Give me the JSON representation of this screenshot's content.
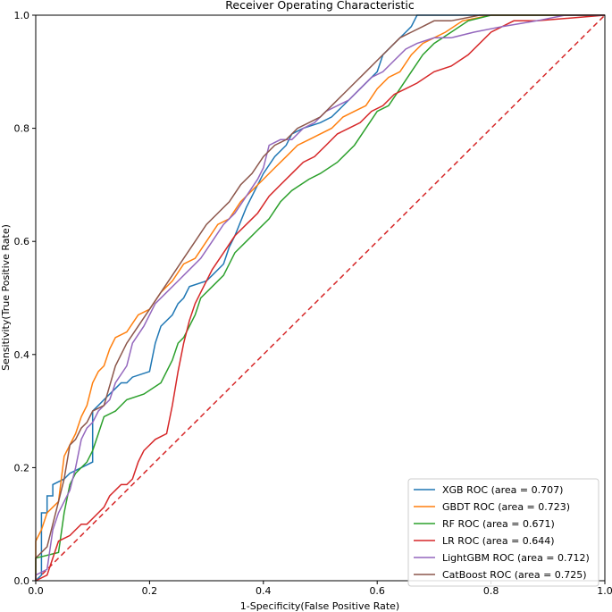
{
  "chart_data": {
    "type": "line",
    "title": "Receiver Operating Characteristic",
    "xlabel": "1-Specificity(False Positive Rate)",
    "ylabel": "Sensitivity(True Positive Rate)",
    "xlim": [
      0.0,
      1.0
    ],
    "ylim": [
      0.0,
      1.0
    ],
    "xticks": [
      "0.0",
      "0.2",
      "0.4",
      "0.6",
      "0.8",
      "1.0"
    ],
    "yticks": [
      "0.0",
      "0.2",
      "0.4",
      "0.6",
      "0.8",
      "1.0"
    ],
    "grid": false,
    "legend_position": "lower-right",
    "reference_line": {
      "style": "dashed",
      "color": "#d62728",
      "x": [
        0,
        1
      ],
      "y": [
        0,
        1
      ]
    },
    "series": [
      {
        "name": "XGB ROC (area = 0.707)",
        "color": "#1f77b4",
        "x": [
          0.0,
          0.01,
          0.01,
          0.02,
          0.02,
          0.03,
          0.03,
          0.05,
          0.06,
          0.08,
          0.1,
          0.1,
          0.11,
          0.12,
          0.14,
          0.15,
          0.16,
          0.17,
          0.2,
          0.21,
          0.22,
          0.24,
          0.25,
          0.26,
          0.27,
          0.3,
          0.31,
          0.33,
          0.34,
          0.35,
          0.37,
          0.39,
          0.4,
          0.42,
          0.44,
          0.45,
          0.47,
          0.5,
          0.52,
          0.55,
          0.57,
          0.6,
          0.61,
          0.63,
          0.65,
          0.66,
          0.67,
          0.75,
          0.83,
          0.9,
          1.0
        ],
        "y": [
          0.0,
          0.01,
          0.12,
          0.12,
          0.15,
          0.15,
          0.17,
          0.18,
          0.19,
          0.2,
          0.21,
          0.3,
          0.31,
          0.32,
          0.34,
          0.35,
          0.35,
          0.36,
          0.37,
          0.42,
          0.45,
          0.47,
          0.49,
          0.5,
          0.52,
          0.53,
          0.54,
          0.56,
          0.59,
          0.61,
          0.66,
          0.7,
          0.72,
          0.75,
          0.77,
          0.79,
          0.8,
          0.81,
          0.82,
          0.85,
          0.87,
          0.9,
          0.93,
          0.95,
          0.97,
          0.98,
          1.0,
          1.0,
          1.0,
          1.0,
          1.0
        ]
      },
      {
        "name": "GBDT ROC (area = 0.723)",
        "color": "#ff7f0e",
        "x": [
          0.0,
          0.0,
          0.01,
          0.02,
          0.03,
          0.04,
          0.05,
          0.07,
          0.08,
          0.09,
          0.1,
          0.11,
          0.12,
          0.13,
          0.14,
          0.16,
          0.18,
          0.2,
          0.22,
          0.24,
          0.26,
          0.28,
          0.3,
          0.32,
          0.34,
          0.36,
          0.38,
          0.4,
          0.42,
          0.44,
          0.46,
          0.48,
          0.5,
          0.52,
          0.54,
          0.56,
          0.58,
          0.6,
          0.62,
          0.64,
          0.66,
          0.68,
          0.7,
          0.72,
          0.75,
          0.8,
          0.9,
          1.0
        ],
        "y": [
          0.0,
          0.07,
          0.09,
          0.12,
          0.13,
          0.14,
          0.22,
          0.26,
          0.29,
          0.31,
          0.35,
          0.37,
          0.38,
          0.41,
          0.43,
          0.44,
          0.47,
          0.48,
          0.51,
          0.53,
          0.56,
          0.57,
          0.6,
          0.63,
          0.64,
          0.67,
          0.69,
          0.71,
          0.73,
          0.75,
          0.77,
          0.78,
          0.79,
          0.8,
          0.82,
          0.83,
          0.84,
          0.87,
          0.89,
          0.9,
          0.93,
          0.95,
          0.96,
          0.97,
          0.99,
          1.0,
          1.0,
          1.0
        ]
      },
      {
        "name": "RF ROC (area = 0.671)",
        "color": "#2ca02c",
        "x": [
          0.0,
          0.0,
          0.04,
          0.05,
          0.06,
          0.07,
          0.08,
          0.09,
          0.1,
          0.11,
          0.12,
          0.14,
          0.16,
          0.19,
          0.22,
          0.24,
          0.25,
          0.26,
          0.28,
          0.29,
          0.31,
          0.33,
          0.35,
          0.37,
          0.39,
          0.41,
          0.43,
          0.45,
          0.48,
          0.5,
          0.53,
          0.56,
          0.58,
          0.6,
          0.62,
          0.64,
          0.66,
          0.68,
          0.7,
          0.73,
          0.76,
          0.8,
          1.0
        ],
        "y": [
          0.0,
          0.04,
          0.05,
          0.12,
          0.17,
          0.19,
          0.2,
          0.21,
          0.23,
          0.26,
          0.29,
          0.3,
          0.32,
          0.33,
          0.35,
          0.39,
          0.42,
          0.43,
          0.47,
          0.5,
          0.52,
          0.54,
          0.58,
          0.6,
          0.62,
          0.64,
          0.67,
          0.69,
          0.71,
          0.72,
          0.74,
          0.77,
          0.8,
          0.83,
          0.84,
          0.87,
          0.9,
          0.93,
          0.95,
          0.97,
          0.99,
          1.0,
          1.0
        ]
      },
      {
        "name": "LR ROC (area = 0.644)",
        "color": "#d62728",
        "x": [
          0.0,
          0.02,
          0.04,
          0.06,
          0.07,
          0.08,
          0.09,
          0.1,
          0.12,
          0.13,
          0.14,
          0.15,
          0.16,
          0.17,
          0.18,
          0.19,
          0.2,
          0.21,
          0.23,
          0.24,
          0.25,
          0.26,
          0.27,
          0.28,
          0.29,
          0.31,
          0.33,
          0.35,
          0.37,
          0.39,
          0.41,
          0.43,
          0.45,
          0.47,
          0.49,
          0.51,
          0.53,
          0.55,
          0.57,
          0.59,
          0.61,
          0.63,
          0.65,
          0.67,
          0.7,
          0.73,
          0.76,
          0.8,
          0.84,
          0.88,
          1.0
        ],
        "y": [
          0.0,
          0.01,
          0.07,
          0.08,
          0.09,
          0.1,
          0.1,
          0.11,
          0.13,
          0.15,
          0.16,
          0.17,
          0.17,
          0.18,
          0.21,
          0.23,
          0.24,
          0.25,
          0.26,
          0.31,
          0.37,
          0.42,
          0.46,
          0.49,
          0.51,
          0.55,
          0.58,
          0.61,
          0.63,
          0.65,
          0.68,
          0.7,
          0.72,
          0.74,
          0.75,
          0.77,
          0.79,
          0.8,
          0.81,
          0.83,
          0.84,
          0.86,
          0.87,
          0.88,
          0.9,
          0.91,
          0.93,
          0.97,
          0.99,
          0.99,
          1.0
        ]
      },
      {
        "name": "LightGBM ROC (area = 0.712)",
        "color": "#9467bd",
        "x": [
          0.0,
          0.0,
          0.02,
          0.03,
          0.04,
          0.05,
          0.06,
          0.07,
          0.08,
          0.09,
          0.1,
          0.11,
          0.13,
          0.14,
          0.16,
          0.17,
          0.19,
          0.21,
          0.23,
          0.25,
          0.27,
          0.29,
          0.31,
          0.33,
          0.35,
          0.37,
          0.39,
          0.4,
          0.41,
          0.43,
          0.45,
          0.47,
          0.49,
          0.51,
          0.53,
          0.55,
          0.57,
          0.59,
          0.61,
          0.63,
          0.65,
          0.67,
          0.7,
          0.73,
          0.77,
          0.82,
          0.88,
          0.93,
          1.0
        ],
        "y": [
          0.0,
          0.01,
          0.02,
          0.09,
          0.12,
          0.14,
          0.16,
          0.2,
          0.25,
          0.27,
          0.28,
          0.3,
          0.32,
          0.35,
          0.38,
          0.42,
          0.45,
          0.49,
          0.51,
          0.53,
          0.55,
          0.57,
          0.6,
          0.63,
          0.65,
          0.68,
          0.71,
          0.73,
          0.77,
          0.78,
          0.78,
          0.8,
          0.81,
          0.83,
          0.84,
          0.85,
          0.87,
          0.89,
          0.9,
          0.92,
          0.94,
          0.95,
          0.96,
          0.96,
          0.97,
          0.98,
          0.99,
          1.0,
          1.0
        ]
      },
      {
        "name": "CatBoost ROC (area = 0.725)",
        "color": "#8c564b",
        "x": [
          0.0,
          0.0,
          0.02,
          0.03,
          0.04,
          0.05,
          0.06,
          0.07,
          0.08,
          0.09,
          0.1,
          0.12,
          0.14,
          0.16,
          0.18,
          0.2,
          0.22,
          0.24,
          0.26,
          0.28,
          0.3,
          0.32,
          0.34,
          0.36,
          0.38,
          0.4,
          0.42,
          0.44,
          0.46,
          0.48,
          0.5,
          0.52,
          0.54,
          0.56,
          0.58,
          0.6,
          0.62,
          0.64,
          0.66,
          0.68,
          0.7,
          0.73,
          0.78,
          0.85,
          1.0
        ],
        "y": [
          0.0,
          0.04,
          0.06,
          0.1,
          0.14,
          0.18,
          0.24,
          0.25,
          0.27,
          0.28,
          0.3,
          0.31,
          0.38,
          0.42,
          0.45,
          0.48,
          0.51,
          0.54,
          0.57,
          0.6,
          0.63,
          0.65,
          0.67,
          0.7,
          0.72,
          0.75,
          0.77,
          0.78,
          0.8,
          0.81,
          0.82,
          0.84,
          0.86,
          0.88,
          0.9,
          0.92,
          0.94,
          0.96,
          0.97,
          0.98,
          0.99,
          0.99,
          1.0,
          1.0,
          1.0
        ]
      }
    ]
  }
}
